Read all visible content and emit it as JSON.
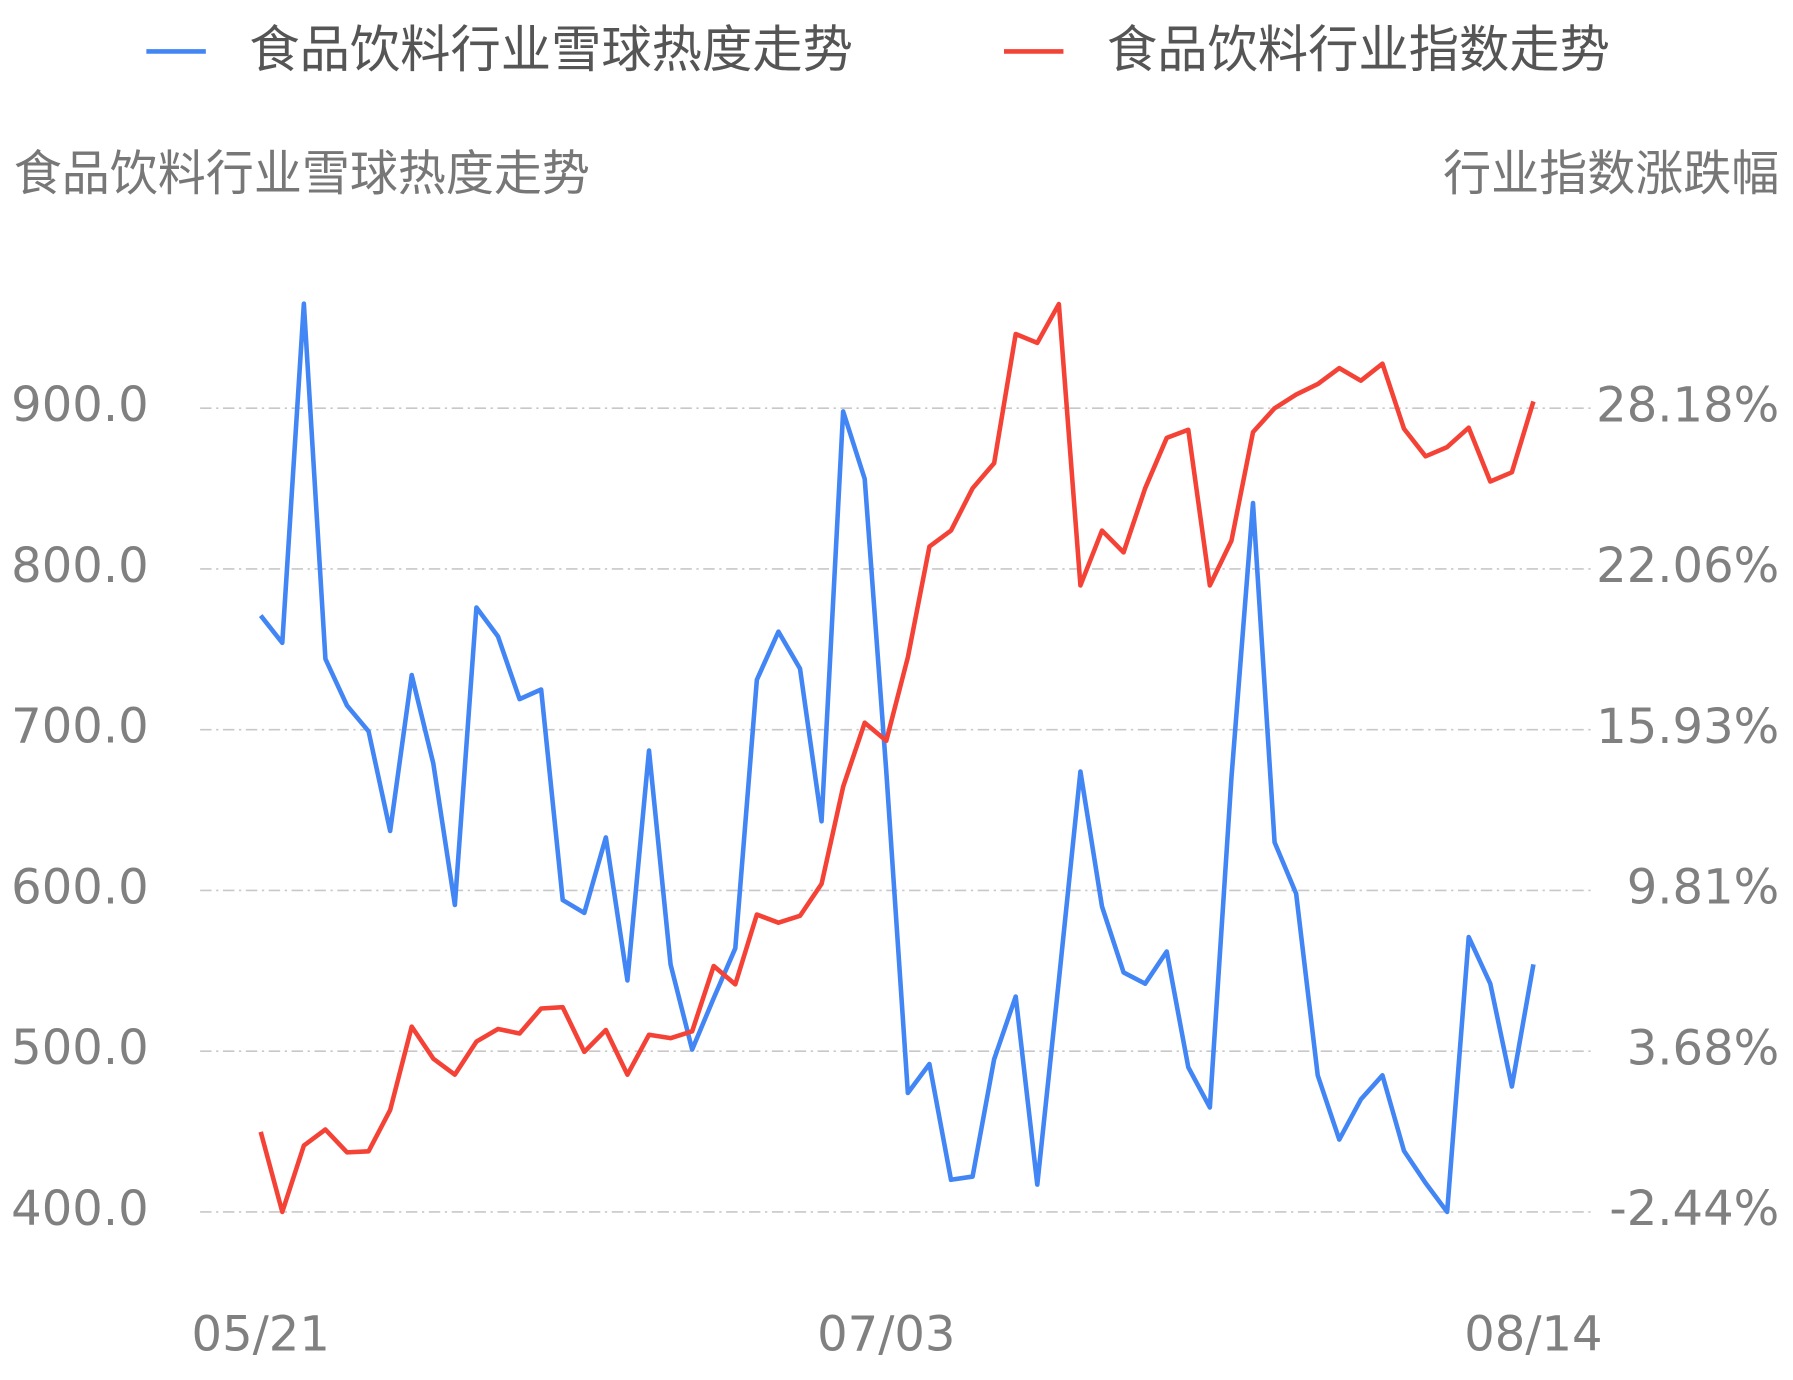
{
  "chart_data": {
    "type": "line",
    "categories": [
      "05/21",
      null,
      null,
      null,
      null,
      null,
      null,
      null,
      null,
      null,
      null,
      null,
      null,
      null,
      null,
      null,
      null,
      null,
      null,
      null,
      null,
      null,
      null,
      null,
      null,
      null,
      null,
      null,
      null,
      "07/03",
      null,
      null,
      null,
      null,
      null,
      null,
      null,
      null,
      null,
      null,
      null,
      null,
      null,
      null,
      null,
      null,
      null,
      null,
      null,
      null,
      null,
      null,
      null,
      null,
      null,
      null,
      null,
      null,
      null,
      "08/14"
    ],
    "y_label": "食品饮料行业雪球热度走势",
    "y2_label": "行业指数涨跌幅",
    "ylim": [
      400,
      970
    ],
    "yticks": [
      {
        "value": 400,
        "label": "400.0"
      },
      {
        "value": 500,
        "label": "500.0"
      },
      {
        "value": 600,
        "label": "600.0"
      },
      {
        "value": 700,
        "label": "700.0"
      },
      {
        "value": 800,
        "label": "800.0"
      },
      {
        "value": 900,
        "label": "900.0"
      }
    ],
    "y2lim": [
      -2.44,
      32.47
    ],
    "y2ticks": [
      {
        "value": -2.44,
        "label": "-2.44%"
      },
      {
        "value": 3.68,
        "label": "3.68%"
      },
      {
        "value": 9.81,
        "label": "9.81%"
      },
      {
        "value": 15.93,
        "label": "15.93%"
      },
      {
        "value": 22.06,
        "label": "22.06%"
      },
      {
        "value": 28.18,
        "label": "28.18%"
      }
    ],
    "grid": true,
    "legend": "top",
    "series": [
      {
        "name": "食品饮料行业雪球热度走势",
        "color": "#4285f4",
        "axis": "y",
        "values": [
          771,
          754,
          965,
          744,
          715,
          699,
          637,
          734,
          679,
          591,
          776,
          758,
          719,
          725,
          594,
          586,
          633,
          544,
          687,
          554,
          501,
          533,
          564,
          731,
          761,
          738,
          643,
          898,
          856,
          674,
          474,
          492,
          420,
          422,
          495,
          534,
          417,
          544,
          674,
          590,
          549,
          542,
          562,
          490,
          465,
          670,
          841,
          630,
          598,
          485,
          445,
          470,
          485,
          438,
          418,
          400,
          571,
          542,
          478,
          554
        ]
      },
      {
        "name": "食品饮料行业指数走势",
        "color": "#f44336",
        "axis": "y2",
        "values": [
          0.61,
          -2.44,
          0.09,
          0.7,
          -0.17,
          -0.13,
          1.44,
          4.62,
          3.4,
          2.79,
          4.05,
          4.53,
          4.36,
          5.31,
          5.36,
          3.66,
          4.49,
          2.79,
          4.31,
          4.18,
          4.44,
          6.93,
          6.23,
          8.89,
          8.58,
          8.84,
          10.06,
          13.76,
          16.2,
          15.51,
          18.69,
          22.91,
          23.52,
          25.13,
          26.09,
          31.01,
          30.67,
          32.15,
          21.43,
          23.52,
          22.69,
          25.13,
          27.05,
          27.36,
          21.43,
          23.13,
          27.27,
          28.18,
          28.7,
          29.1,
          29.71,
          29.23,
          29.88,
          27.4,
          26.35,
          26.7,
          27.44,
          25.39,
          25.74,
          28.44
        ]
      }
    ]
  }
}
